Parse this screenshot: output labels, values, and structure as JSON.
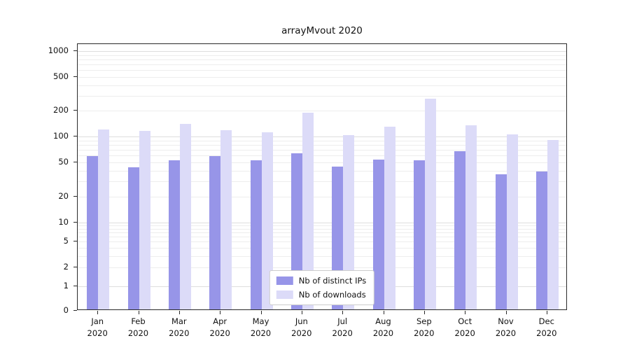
{
  "chart_data": {
    "type": "bar",
    "title": "arrayMvout 2020",
    "scale": "symlog",
    "categories": [
      "Jan",
      "Feb",
      "Mar",
      "Apr",
      "May",
      "Jun",
      "Jul",
      "Aug",
      "Sep",
      "Oct",
      "Nov",
      "Dec"
    ],
    "year_label": "2020",
    "series": [
      {
        "name": "Nb of distinct IPs",
        "color": "#9795e8",
        "values": [
          57,
          42,
          51,
          57,
          51,
          62,
          43,
          52,
          51,
          65,
          35,
          38
        ]
      },
      {
        "name": "Nb of downloads",
        "color": "#dcdbf8",
        "values": [
          116,
          112,
          135,
          114,
          109,
          182,
          101,
          126,
          270,
          130,
          103,
          88
        ]
      }
    ],
    "yticks": [
      0,
      1,
      2,
      5,
      10,
      20,
      50,
      100,
      200,
      500,
      1000
    ],
    "ylim": [
      0,
      1000
    ],
    "grid": "on",
    "legend_position": "lower center"
  }
}
